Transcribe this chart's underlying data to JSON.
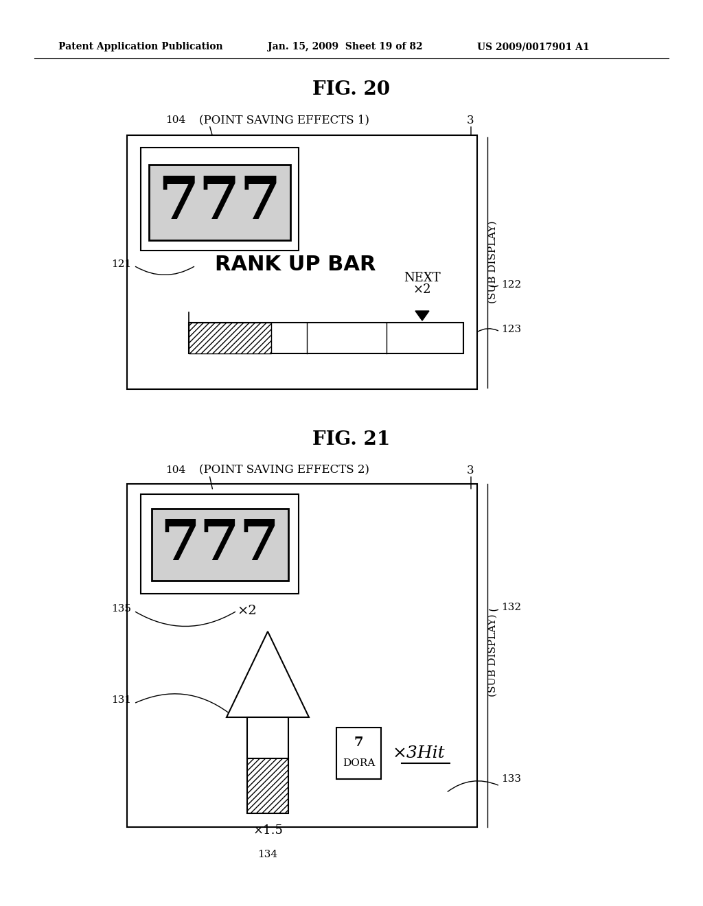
{
  "bg_color": "#ffffff",
  "header_text": "Patent Application Publication",
  "header_date": "Jan. 15, 2009  Sheet 19 of 82",
  "header_patent": "US 2009/0017901 A1",
  "fig20_title": "FIG. 20",
  "fig21_title": "FIG. 21",
  "fig20_label": "104",
  "fig20_sublabel": "(POINT SAVING EFFECTS 1)",
  "fig20_ref3": "3",
  "fig20_subdisplay": "(SUB DISPLAY)",
  "fig20_121": "121",
  "fig20_122": "122",
  "fig20_123": "123",
  "fig20_rankupbar": "RANK UP BAR",
  "fig20_next": "NEXT",
  "fig20_x2": "×2",
  "fig21_label": "104",
  "fig21_sublabel": "(POINT SAVING EFFECTS 2)",
  "fig21_ref3": "3",
  "fig21_subdisplay": "(SUB DISPLAY)",
  "fig21_131": "131",
  "fig21_132": "132",
  "fig21_133": "133",
  "fig21_134": "134",
  "fig21_135": "135",
  "fig21_x2": "×2",
  "fig21_dora_top": "7",
  "fig21_dora_bot": "DORA",
  "fig21_3hit": "×3Hit",
  "fig21_x15": "×1.5"
}
